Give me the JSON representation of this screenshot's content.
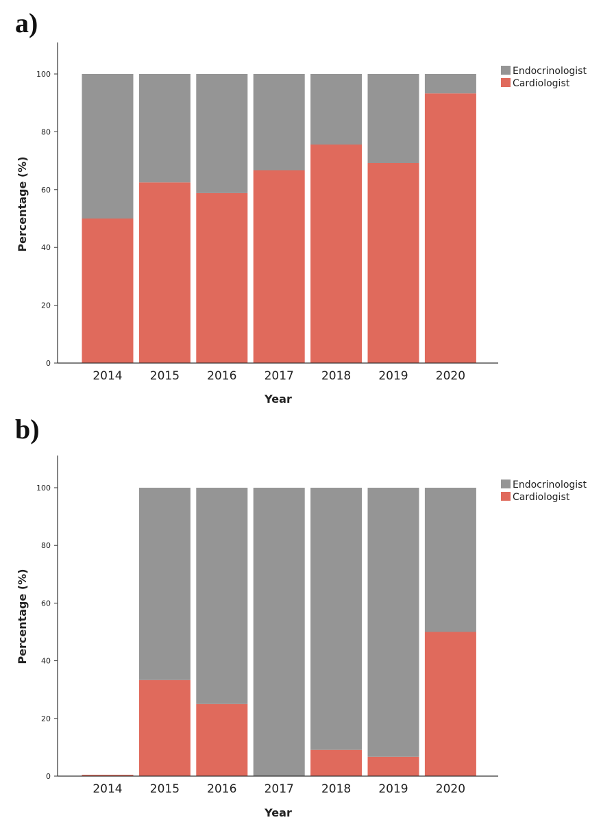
{
  "colors": {
    "endocrinologist": "#959595",
    "cardiologist": "#e06a5c",
    "axis": "#333333"
  },
  "chart_data": [
    {
      "panel": "a)",
      "type": "bar",
      "stacked": true,
      "xlabel": "Year",
      "ylabel": "Percentage (%)",
      "ylim": [
        0,
        110
      ],
      "yticks": [
        0,
        20,
        40,
        60,
        80,
        100
      ],
      "categories": [
        "2014",
        "2015",
        "2016",
        "2017",
        "2018",
        "2019",
        "2020"
      ],
      "legend_position": "top-right",
      "series": [
        {
          "name": "Cardiologist",
          "color": "#e06a5c",
          "values": [
            50,
            62.5,
            58.8,
            66.7,
            75.6,
            69.2,
            93.3
          ]
        },
        {
          "name": "Endocrinologist",
          "color": "#959595",
          "values": [
            50,
            37.5,
            41.2,
            33.3,
            24.4,
            30.8,
            6.7
          ]
        }
      ],
      "legend": [
        "Endocrinologist",
        "Cardiologist"
      ]
    },
    {
      "panel": "b)",
      "type": "bar",
      "stacked": true,
      "xlabel": "Year",
      "ylabel": "Percentage (%)",
      "ylim": [
        0,
        110
      ],
      "yticks": [
        0,
        20,
        40,
        60,
        80,
        100
      ],
      "categories": [
        "2014",
        "2015",
        "2016",
        "2017",
        "2018",
        "2019",
        "2020"
      ],
      "legend_position": "top-right",
      "series": [
        {
          "name": "Cardiologist",
          "color": "#e06a5c",
          "values": [
            0,
            33.3,
            25,
            0,
            9.1,
            6.7,
            50
          ]
        },
        {
          "name": "Endocrinologist",
          "color": "#959595",
          "values": [
            0,
            66.7,
            75,
            100,
            90.9,
            93.3,
            50
          ]
        }
      ],
      "legend": [
        "Endocrinologist",
        "Cardiologist"
      ]
    }
  ]
}
